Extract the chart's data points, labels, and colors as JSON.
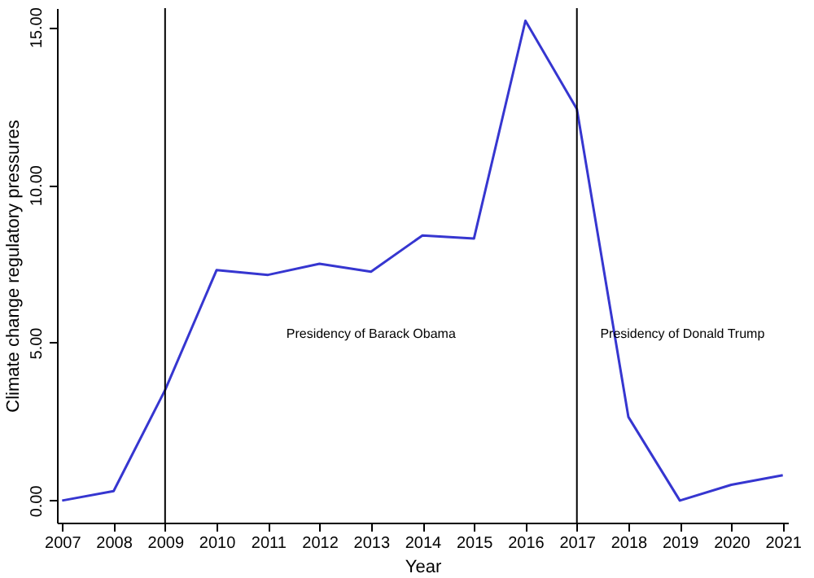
{
  "chart_data": {
    "type": "line",
    "xlabel": "Year",
    "ylabel": "Climate change regulatory pressures",
    "x": [
      2007,
      2008,
      2009,
      2010,
      2011,
      2012,
      2013,
      2014,
      2015,
      2016,
      2017,
      2018,
      2019,
      2020,
      2021
    ],
    "series": [
      {
        "color": "#3636d0",
        "values": [
          0,
          0.3,
          3.5,
          7.3,
          7.15,
          7.5,
          7.25,
          8.4,
          8.3,
          15.2,
          12.4,
          2.65,
          0,
          0.5,
          0.8
        ]
      }
    ],
    "xlim": [
      2006.9,
      2021.1
    ],
    "xticks": [
      2007,
      2008,
      2009,
      2010,
      2011,
      2012,
      2013,
      2014,
      2015,
      2016,
      2017,
      2018,
      2019,
      2020,
      2021
    ],
    "ylim": [
      -0.7,
      15.6
    ],
    "yticks": [
      {
        "value": 0,
        "label": "0.00"
      },
      {
        "value": 5,
        "label": "5.00"
      },
      {
        "value": 10,
        "label": "10.00"
      },
      {
        "value": 15,
        "label": "15.00"
      }
    ],
    "ref_lines": [
      {
        "axis": "x",
        "value": 2009,
        "color": "#000000"
      },
      {
        "axis": "x",
        "value": 2017,
        "color": "#000000"
      }
    ],
    "annotations": [
      "Presidency of Barack Obama",
      "Presidency of Donald Trump"
    ],
    "grid": false,
    "marker": "none",
    "line_style": "solid"
  }
}
